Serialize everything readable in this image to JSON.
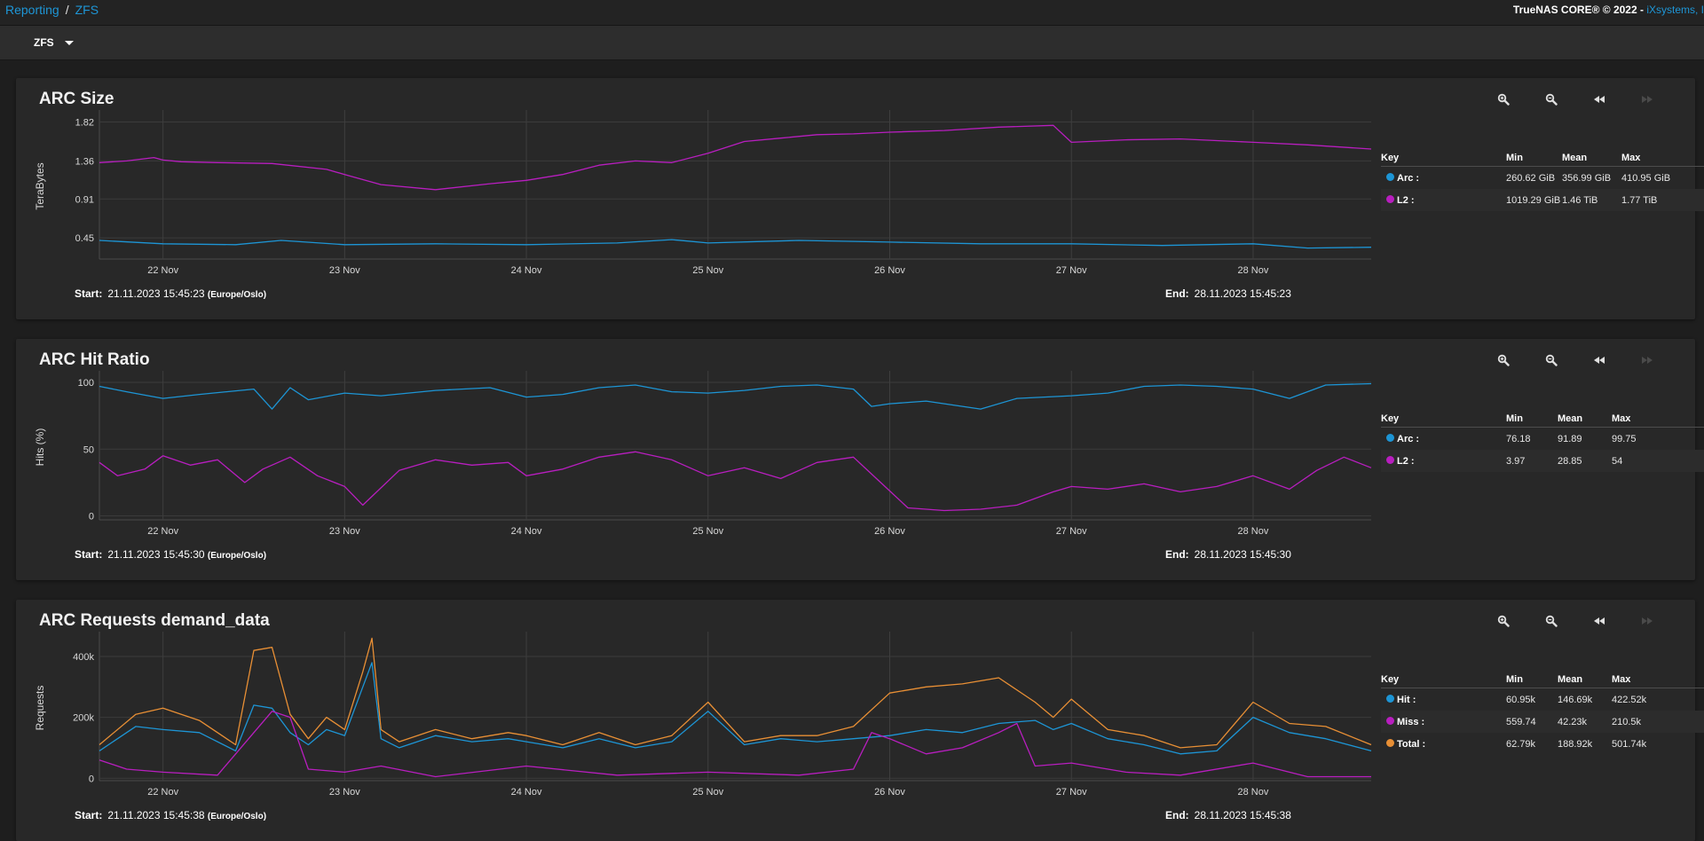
{
  "breadcrumb": {
    "root": "Reporting",
    "separator": "/",
    "current": "ZFS"
  },
  "footer_brand": {
    "text": "TrueNAS CORE® © 2022 - ",
    "vendor": "iXsystems, I"
  },
  "selector": {
    "value": "ZFS"
  },
  "legend_headers": {
    "key": "Key",
    "min": "Min",
    "mean": "Mean",
    "max": "Max"
  },
  "range_labels": {
    "start": "Start:",
    "end": "End:",
    "tz": "(Europe/Oslo)"
  },
  "colors": {
    "arc": "#1d95d5",
    "l2": "#b81ebf",
    "total": "#e88f35",
    "grid": "#3b3b3b"
  },
  "icons": [
    "zoom-in-icon",
    "zoom-out-icon",
    "step-back-icon",
    "step-forward-icon"
  ],
  "cards": [
    {
      "title": "ARC Size",
      "start": "21.11.2023 15:45:23",
      "end": "28.11.2023 15:45:23",
      "legend": [
        {
          "name": "Arc :",
          "color": "#1d95d5",
          "min": "260.62 GiB",
          "mean": "356.99 GiB",
          "max": "410.95 GiB"
        },
        {
          "name": "L2 :",
          "color": "#b81ebf",
          "min": "1019.29 GiB",
          "mean": "1.46 TiB",
          "max": "1.77 TiB"
        }
      ]
    },
    {
      "title": "ARC Hit Ratio",
      "start": "21.11.2023 15:45:30",
      "end": "28.11.2023 15:45:30",
      "legend": [
        {
          "name": "Arc :",
          "color": "#1d95d5",
          "min": "76.18",
          "mean": "91.89",
          "max": "99.75"
        },
        {
          "name": "L2 :",
          "color": "#b81ebf",
          "min": "3.97",
          "mean": "28.85",
          "max": "54"
        }
      ]
    },
    {
      "title": "ARC Requests demand_data",
      "start": "21.11.2023 15:45:38",
      "end": "28.11.2023 15:45:38",
      "legend": [
        {
          "name": "Hit :",
          "color": "#1d95d5",
          "min": "60.95k",
          "mean": "146.69k",
          "max": "422.52k"
        },
        {
          "name": "Miss :",
          "color": "#b81ebf",
          "min": "559.74",
          "mean": "42.23k",
          "max": "210.5k"
        },
        {
          "name": "Total :",
          "color": "#e88f35",
          "min": "62.79k",
          "mean": "188.92k",
          "max": "501.74k"
        }
      ]
    }
  ],
  "chart_data": [
    {
      "type": "line",
      "ylabel": "TeraBytes",
      "xlim": [
        -0.35,
        6.65
      ],
      "ylim": [
        0.2,
        1.92
      ],
      "yticks": [
        0.45,
        0.91,
        1.36,
        1.82
      ],
      "xticks": [
        {
          "x": 0,
          "label": "22 Nov"
        },
        {
          "x": 1,
          "label": "23 Nov"
        },
        {
          "x": 2,
          "label": "24 Nov"
        },
        {
          "x": 3,
          "label": "25 Nov"
        },
        {
          "x": 4,
          "label": "26 Nov"
        },
        {
          "x": 5,
          "label": "27 Nov"
        },
        {
          "x": 6,
          "label": "28 Nov"
        }
      ],
      "series": [
        {
          "name": "L2",
          "color": "#b81ebf",
          "x": [
            -0.35,
            -0.2,
            -0.05,
            0,
            0.1,
            0.3,
            0.6,
            0.9,
            1.0,
            1.2,
            1.5,
            1.8,
            1.9,
            2.0,
            2.2,
            2.4,
            2.6,
            2.8,
            3.0,
            3.2,
            3.4,
            3.6,
            3.8,
            4.0,
            4.3,
            4.6,
            4.9,
            5.0,
            5.3,
            5.6,
            6.0,
            6.3,
            6.65
          ],
          "y": [
            1.34,
            1.36,
            1.4,
            1.37,
            1.35,
            1.34,
            1.33,
            1.26,
            1.2,
            1.08,
            1.02,
            1.09,
            1.11,
            1.13,
            1.2,
            1.31,
            1.36,
            1.34,
            1.45,
            1.59,
            1.63,
            1.67,
            1.68,
            1.7,
            1.72,
            1.76,
            1.78,
            1.58,
            1.61,
            1.62,
            1.58,
            1.55,
            1.5
          ]
        },
        {
          "name": "Arc",
          "color": "#1d95d5",
          "x": [
            -0.35,
            0,
            0.4,
            0.65,
            1.0,
            1.5,
            2.0,
            2.5,
            2.8,
            3.0,
            3.5,
            4.0,
            4.5,
            5.0,
            5.5,
            6.0,
            6.3,
            6.65
          ],
          "y": [
            0.42,
            0.38,
            0.37,
            0.42,
            0.37,
            0.38,
            0.37,
            0.39,
            0.43,
            0.39,
            0.42,
            0.4,
            0.38,
            0.38,
            0.36,
            0.38,
            0.33,
            0.34
          ]
        }
      ]
    },
    {
      "type": "line",
      "ylabel": "Hits (%)",
      "xlim": [
        -0.35,
        6.65
      ],
      "ylim": [
        -3,
        106
      ],
      "yticks": [
        0,
        50,
        100
      ],
      "xticks": [
        {
          "x": 0,
          "label": "22 Nov"
        },
        {
          "x": 1,
          "label": "23 Nov"
        },
        {
          "x": 2,
          "label": "24 Nov"
        },
        {
          "x": 3,
          "label": "25 Nov"
        },
        {
          "x": 4,
          "label": "26 Nov"
        },
        {
          "x": 5,
          "label": "27 Nov"
        },
        {
          "x": 6,
          "label": "28 Nov"
        }
      ],
      "series": [
        {
          "name": "Arc",
          "color": "#1d95d5",
          "x": [
            -0.35,
            -0.2,
            0,
            0.2,
            0.5,
            0.6,
            0.7,
            0.8,
            1.0,
            1.2,
            1.5,
            1.8,
            2.0,
            2.2,
            2.4,
            2.6,
            2.8,
            3.0,
            3.2,
            3.4,
            3.6,
            3.8,
            3.9,
            4.0,
            4.2,
            4.5,
            4.7,
            5.0,
            5.2,
            5.4,
            5.6,
            5.8,
            6.0,
            6.2,
            6.4,
            6.65
          ],
          "y": [
            97,
            93,
            88,
            91,
            95,
            80,
            96,
            87,
            92,
            90,
            94,
            96,
            89,
            91,
            96,
            98,
            93,
            92,
            94,
            97,
            98,
            95,
            82,
            84,
            86,
            80,
            88,
            90,
            92,
            97,
            98,
            97,
            95,
            88,
            98,
            99
          ]
        },
        {
          "name": "L2",
          "color": "#b81ebf",
          "x": [
            -0.35,
            -0.25,
            -0.1,
            0,
            0.15,
            0.3,
            0.45,
            0.55,
            0.7,
            0.85,
            1.0,
            1.1,
            1.3,
            1.5,
            1.7,
            1.9,
            2.0,
            2.2,
            2.4,
            2.6,
            2.8,
            3.0,
            3.2,
            3.4,
            3.6,
            3.8,
            3.95,
            4.1,
            4.3,
            4.5,
            4.7,
            4.9,
            5.0,
            5.2,
            5.4,
            5.6,
            5.8,
            6.0,
            6.2,
            6.35,
            6.5,
            6.65
          ],
          "y": [
            40,
            30,
            35,
            45,
            38,
            42,
            25,
            35,
            44,
            30,
            22,
            8,
            34,
            42,
            38,
            40,
            30,
            35,
            44,
            48,
            42,
            30,
            36,
            28,
            40,
            44,
            25,
            6,
            4,
            5,
            8,
            18,
            22,
            20,
            24,
            18,
            22,
            30,
            20,
            34,
            44,
            36
          ]
        }
      ]
    },
    {
      "type": "line",
      "ylabel": "Requests",
      "xlim": [
        -0.35,
        6.65
      ],
      "ylim": [
        -8000,
        470000
      ],
      "yticks": [
        {
          "value": 0,
          "label": "0"
        },
        {
          "value": 200000,
          "label": "200k"
        },
        {
          "value": 400000,
          "label": "400k"
        }
      ],
      "xticks": [
        {
          "x": 0,
          "label": "22 Nov"
        },
        {
          "x": 1,
          "label": "23 Nov"
        },
        {
          "x": 2,
          "label": "24 Nov"
        },
        {
          "x": 3,
          "label": "25 Nov"
        },
        {
          "x": 4,
          "label": "26 Nov"
        },
        {
          "x": 5,
          "label": "27 Nov"
        },
        {
          "x": 6,
          "label": "28 Nov"
        }
      ],
      "series": [
        {
          "name": "Total",
          "color": "#e88f35",
          "x": [
            -0.35,
            -0.15,
            0,
            0.2,
            0.4,
            0.5,
            0.6,
            0.7,
            0.8,
            0.9,
            1.0,
            1.1,
            1.15,
            1.2,
            1.3,
            1.5,
            1.7,
            1.9,
            2.0,
            2.2,
            2.4,
            2.6,
            2.8,
            3.0,
            3.2,
            3.4,
            3.6,
            3.8,
            4.0,
            4.2,
            4.4,
            4.6,
            4.8,
            4.9,
            5.0,
            5.2,
            5.4,
            5.6,
            5.8,
            6.0,
            6.2,
            6.4,
            6.65
          ],
          "y": [
            110000,
            210000,
            230000,
            190000,
            110000,
            420000,
            430000,
            210000,
            130000,
            200000,
            160000,
            350000,
            460000,
            160000,
            120000,
            160000,
            130000,
            150000,
            140000,
            110000,
            150000,
            110000,
            140000,
            250000,
            120000,
            140000,
            140000,
            170000,
            280000,
            300000,
            310000,
            330000,
            250000,
            200000,
            260000,
            160000,
            140000,
            100000,
            110000,
            250000,
            180000,
            170000,
            110000
          ]
        },
        {
          "name": "Hit",
          "color": "#1d95d5",
          "x": [
            -0.35,
            -0.15,
            0,
            0.2,
            0.4,
            0.5,
            0.6,
            0.7,
            0.8,
            0.9,
            1.0,
            1.1,
            1.15,
            1.2,
            1.3,
            1.5,
            1.7,
            1.9,
            2.0,
            2.2,
            2.4,
            2.6,
            2.8,
            3.0,
            3.2,
            3.4,
            3.6,
            3.8,
            4.0,
            4.2,
            4.4,
            4.6,
            4.8,
            4.9,
            5.0,
            5.2,
            5.4,
            5.6,
            5.8,
            6.0,
            6.2,
            6.4,
            6.65
          ],
          "y": [
            90000,
            170000,
            160000,
            150000,
            90000,
            240000,
            230000,
            150000,
            110000,
            160000,
            140000,
            300000,
            380000,
            130000,
            100000,
            140000,
            120000,
            130000,
            120000,
            100000,
            130000,
            100000,
            120000,
            220000,
            110000,
            130000,
            120000,
            130000,
            140000,
            160000,
            150000,
            180000,
            190000,
            160000,
            180000,
            130000,
            110000,
            80000,
            90000,
            200000,
            150000,
            130000,
            90000
          ]
        },
        {
          "name": "Miss",
          "color": "#b81ebf",
          "x": [
            -0.35,
            -0.2,
            0,
            0.3,
            0.5,
            0.6,
            0.7,
            0.8,
            1.0,
            1.2,
            1.5,
            2.0,
            2.5,
            3.0,
            3.5,
            3.8,
            3.9,
            4.0,
            4.2,
            4.4,
            4.6,
            4.7,
            4.8,
            5.0,
            5.3,
            5.6,
            6.0,
            6.3,
            6.65
          ],
          "y": [
            60000,
            30000,
            20000,
            10000,
            150000,
            220000,
            200000,
            30000,
            20000,
            40000,
            5000,
            40000,
            10000,
            20000,
            10000,
            30000,
            150000,
            130000,
            80000,
            100000,
            150000,
            180000,
            40000,
            50000,
            20000,
            10000,
            50000,
            5000,
            5000
          ]
        }
      ]
    }
  ]
}
